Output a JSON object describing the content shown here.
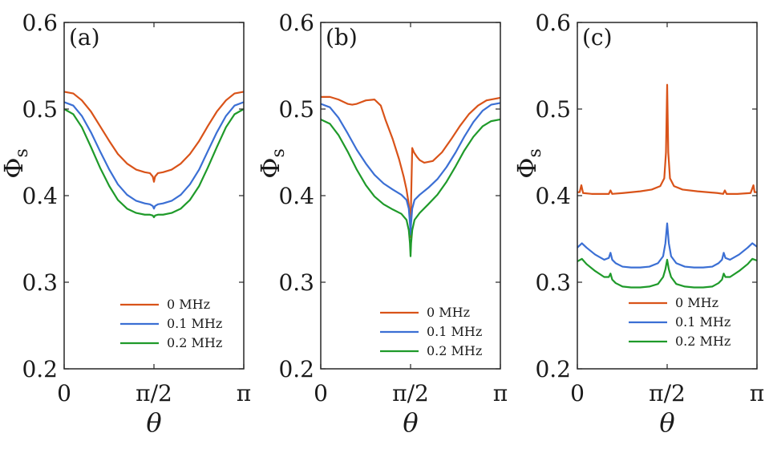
{
  "colors": {
    "0 MHz": "#d95319",
    "0.1 MHz": "#3b6fd4",
    "0.2 MHz": "#1f9a2a"
  },
  "chart_data": [
    {
      "type": "line",
      "panel_label": "(a)",
      "xlabel": "θ",
      "ylabel": "Φ",
      "ylabel_sub": "s",
      "xlim": [
        0,
        3.14159
      ],
      "ylim": [
        0.2,
        0.6
      ],
      "xticks": [
        0,
        1.5708,
        3.14159
      ],
      "xtick_labels": [
        "0",
        "π/2",
        "π"
      ],
      "yticks": [
        0.2,
        0.3,
        0.4,
        0.5,
        0.6
      ],
      "ytick_labels": [
        "0.2",
        "0.3",
        "0.4",
        "0.5",
        "0.6"
      ],
      "legend": [
        "0 MHz",
        "0.1 MHz",
        "0.2 MHz"
      ],
      "legend_position": "lower-right",
      "series": [
        {
          "name": "0 MHz",
          "x": [
            0,
            0.16,
            0.31,
            0.47,
            0.63,
            0.79,
            0.94,
            1.1,
            1.26,
            1.41,
            1.5,
            1.55,
            1.5708,
            1.59,
            1.64,
            1.73,
            1.88,
            2.04,
            2.2,
            2.36,
            2.51,
            2.67,
            2.83,
            2.98,
            3.14159
          ],
          "y": [
            0.52,
            0.518,
            0.51,
            0.497,
            0.48,
            0.463,
            0.448,
            0.437,
            0.43,
            0.427,
            0.426,
            0.422,
            0.416,
            0.422,
            0.426,
            0.427,
            0.43,
            0.437,
            0.448,
            0.463,
            0.48,
            0.497,
            0.51,
            0.518,
            0.52
          ]
        },
        {
          "name": "0.1 MHz",
          "x": [
            0,
            0.16,
            0.31,
            0.47,
            0.63,
            0.79,
            0.94,
            1.1,
            1.26,
            1.41,
            1.5,
            1.55,
            1.5708,
            1.59,
            1.64,
            1.73,
            1.88,
            2.04,
            2.2,
            2.36,
            2.51,
            2.67,
            2.83,
            2.98,
            3.14159
          ],
          "y": [
            0.508,
            0.504,
            0.492,
            0.473,
            0.451,
            0.43,
            0.413,
            0.401,
            0.394,
            0.391,
            0.39,
            0.388,
            0.385,
            0.388,
            0.39,
            0.391,
            0.394,
            0.401,
            0.413,
            0.43,
            0.451,
            0.473,
            0.492,
            0.504,
            0.508
          ]
        },
        {
          "name": "0.2 MHz",
          "x": [
            0,
            0.16,
            0.31,
            0.47,
            0.63,
            0.79,
            0.94,
            1.1,
            1.26,
            1.41,
            1.5,
            1.55,
            1.5708,
            1.59,
            1.64,
            1.73,
            1.88,
            2.04,
            2.2,
            2.36,
            2.51,
            2.67,
            2.83,
            2.98,
            3.14159
          ],
          "y": [
            0.5,
            0.494,
            0.479,
            0.456,
            0.432,
            0.411,
            0.395,
            0.385,
            0.38,
            0.378,
            0.378,
            0.377,
            0.375,
            0.377,
            0.378,
            0.378,
            0.38,
            0.385,
            0.395,
            0.411,
            0.432,
            0.456,
            0.479,
            0.494,
            0.5
          ]
        }
      ]
    },
    {
      "type": "line",
      "panel_label": "(b)",
      "xlabel": "θ",
      "ylabel": "Φ",
      "ylabel_sub": "s",
      "xlim": [
        0,
        3.14159
      ],
      "ylim": [
        0.2,
        0.6
      ],
      "xticks": [
        0,
        1.5708,
        3.14159
      ],
      "xtick_labels": [
        "0",
        "π/2",
        "π"
      ],
      "yticks": [
        0.2,
        0.3,
        0.4,
        0.5,
        0.6
      ],
      "ytick_labels": [
        "0.2",
        "0.3",
        "0.4",
        "0.5",
        "0.6"
      ],
      "legend": [
        "0 MHz",
        "0.1 MHz",
        "0.2 MHz"
      ],
      "legend_position": "lower-right",
      "series": [
        {
          "name": "0 MHz",
          "x": [
            0,
            0.16,
            0.31,
            0.47,
            0.55,
            0.63,
            0.79,
            0.94,
            1.05,
            1.13,
            1.26,
            1.37,
            1.45,
            1.5,
            1.54,
            1.56,
            1.5708,
            1.58,
            1.6,
            1.63,
            1.68,
            1.73,
            1.81,
            1.96,
            2.12,
            2.28,
            2.43,
            2.59,
            2.75,
            2.9,
            3.14159
          ],
          "y": [
            0.514,
            0.514,
            0.511,
            0.506,
            0.505,
            0.506,
            0.51,
            0.511,
            0.504,
            0.488,
            0.465,
            0.442,
            0.422,
            0.407,
            0.39,
            0.375,
            0.352,
            0.395,
            0.455,
            0.45,
            0.445,
            0.441,
            0.438,
            0.44,
            0.45,
            0.465,
            0.48,
            0.494,
            0.504,
            0.51,
            0.513
          ]
        },
        {
          "name": "0.1 MHz",
          "x": [
            0,
            0.16,
            0.31,
            0.47,
            0.63,
            0.79,
            0.94,
            1.1,
            1.26,
            1.41,
            1.5,
            1.54,
            1.56,
            1.5708,
            1.58,
            1.6,
            1.64,
            1.73,
            1.88,
            2.04,
            2.2,
            2.36,
            2.51,
            2.67,
            2.83,
            2.98,
            3.14159
          ],
          "y": [
            0.506,
            0.502,
            0.49,
            0.472,
            0.453,
            0.437,
            0.424,
            0.414,
            0.407,
            0.401,
            0.395,
            0.385,
            0.368,
            0.355,
            0.368,
            0.385,
            0.395,
            0.401,
            0.409,
            0.419,
            0.433,
            0.45,
            0.468,
            0.485,
            0.498,
            0.505,
            0.507
          ]
        },
        {
          "name": "0.2 MHz",
          "x": [
            0,
            0.16,
            0.31,
            0.47,
            0.63,
            0.79,
            0.94,
            1.1,
            1.26,
            1.41,
            1.5,
            1.54,
            1.56,
            1.5708,
            1.58,
            1.6,
            1.64,
            1.73,
            1.88,
            2.04,
            2.2,
            2.36,
            2.51,
            2.67,
            2.83,
            2.98,
            3.14159
          ],
          "y": [
            0.488,
            0.483,
            0.47,
            0.451,
            0.43,
            0.412,
            0.399,
            0.39,
            0.384,
            0.379,
            0.372,
            0.36,
            0.345,
            0.33,
            0.345,
            0.36,
            0.372,
            0.38,
            0.39,
            0.401,
            0.416,
            0.434,
            0.452,
            0.468,
            0.48,
            0.486,
            0.488
          ]
        }
      ]
    },
    {
      "type": "line",
      "panel_label": "(c)",
      "xlabel": "θ",
      "ylabel": "Φ",
      "ylabel_sub": "s",
      "xlim": [
        0,
        3.14159
      ],
      "ylim": [
        0.2,
        0.6
      ],
      "xticks": [
        0,
        1.5708,
        3.14159
      ],
      "xtick_labels": [
        "0",
        "π/2",
        "π"
      ],
      "yticks": [
        0.2,
        0.3,
        0.4,
        0.5,
        0.6
      ],
      "ytick_labels": [
        "0.2",
        "0.3",
        "0.4",
        "0.5",
        "0.6"
      ],
      "legend": [
        "0 MHz",
        "0.1 MHz",
        "0.2 MHz"
      ],
      "legend_position": "lower-right",
      "series": [
        {
          "name": "0 MHz",
          "x": [
            0,
            0.04,
            0.07,
            0.1,
            0.25,
            0.5,
            0.55,
            0.58,
            0.61,
            0.8,
            1.1,
            1.3,
            1.45,
            1.52,
            1.55,
            1.5708,
            1.59,
            1.62,
            1.69,
            1.84,
            2.1,
            2.45,
            2.55,
            2.58,
            2.61,
            2.8,
            3.03,
            3.08,
            3.1,
            3.14159
          ],
          "y": [
            0.404,
            0.404,
            0.412,
            0.403,
            0.402,
            0.402,
            0.402,
            0.406,
            0.402,
            0.403,
            0.405,
            0.407,
            0.411,
            0.42,
            0.45,
            0.528,
            0.45,
            0.42,
            0.411,
            0.407,
            0.405,
            0.403,
            0.402,
            0.406,
            0.402,
            0.402,
            0.403,
            0.412,
            0.404,
            0.404
          ]
        },
        {
          "name": "0.1 MHz",
          "x": [
            0,
            0.08,
            0.16,
            0.31,
            0.47,
            0.55,
            0.58,
            0.61,
            0.67,
            0.79,
            0.94,
            1.1,
            1.26,
            1.41,
            1.5,
            1.54,
            1.5708,
            1.6,
            1.64,
            1.73,
            1.88,
            2.04,
            2.2,
            2.36,
            2.47,
            2.53,
            2.56,
            2.59,
            2.67,
            2.83,
            2.98,
            3.06,
            3.14159
          ],
          "y": [
            0.34,
            0.345,
            0.34,
            0.332,
            0.326,
            0.328,
            0.334,
            0.326,
            0.322,
            0.318,
            0.317,
            0.317,
            0.318,
            0.322,
            0.33,
            0.345,
            0.368,
            0.345,
            0.33,
            0.322,
            0.318,
            0.317,
            0.317,
            0.318,
            0.322,
            0.326,
            0.334,
            0.328,
            0.326,
            0.332,
            0.34,
            0.345,
            0.341
          ]
        },
        {
          "name": "0.2 MHz",
          "x": [
            0,
            0.08,
            0.16,
            0.31,
            0.47,
            0.55,
            0.58,
            0.61,
            0.67,
            0.79,
            0.94,
            1.1,
            1.26,
            1.41,
            1.5,
            1.54,
            1.5708,
            1.6,
            1.64,
            1.73,
            1.88,
            2.04,
            2.2,
            2.36,
            2.47,
            2.53,
            2.56,
            2.59,
            2.67,
            2.83,
            2.98,
            3.06,
            3.14159
          ],
          "y": [
            0.324,
            0.327,
            0.321,
            0.313,
            0.306,
            0.306,
            0.31,
            0.303,
            0.299,
            0.295,
            0.294,
            0.294,
            0.295,
            0.298,
            0.306,
            0.315,
            0.326,
            0.315,
            0.306,
            0.298,
            0.295,
            0.294,
            0.294,
            0.295,
            0.299,
            0.303,
            0.31,
            0.306,
            0.306,
            0.313,
            0.321,
            0.327,
            0.325
          ]
        }
      ]
    }
  ]
}
